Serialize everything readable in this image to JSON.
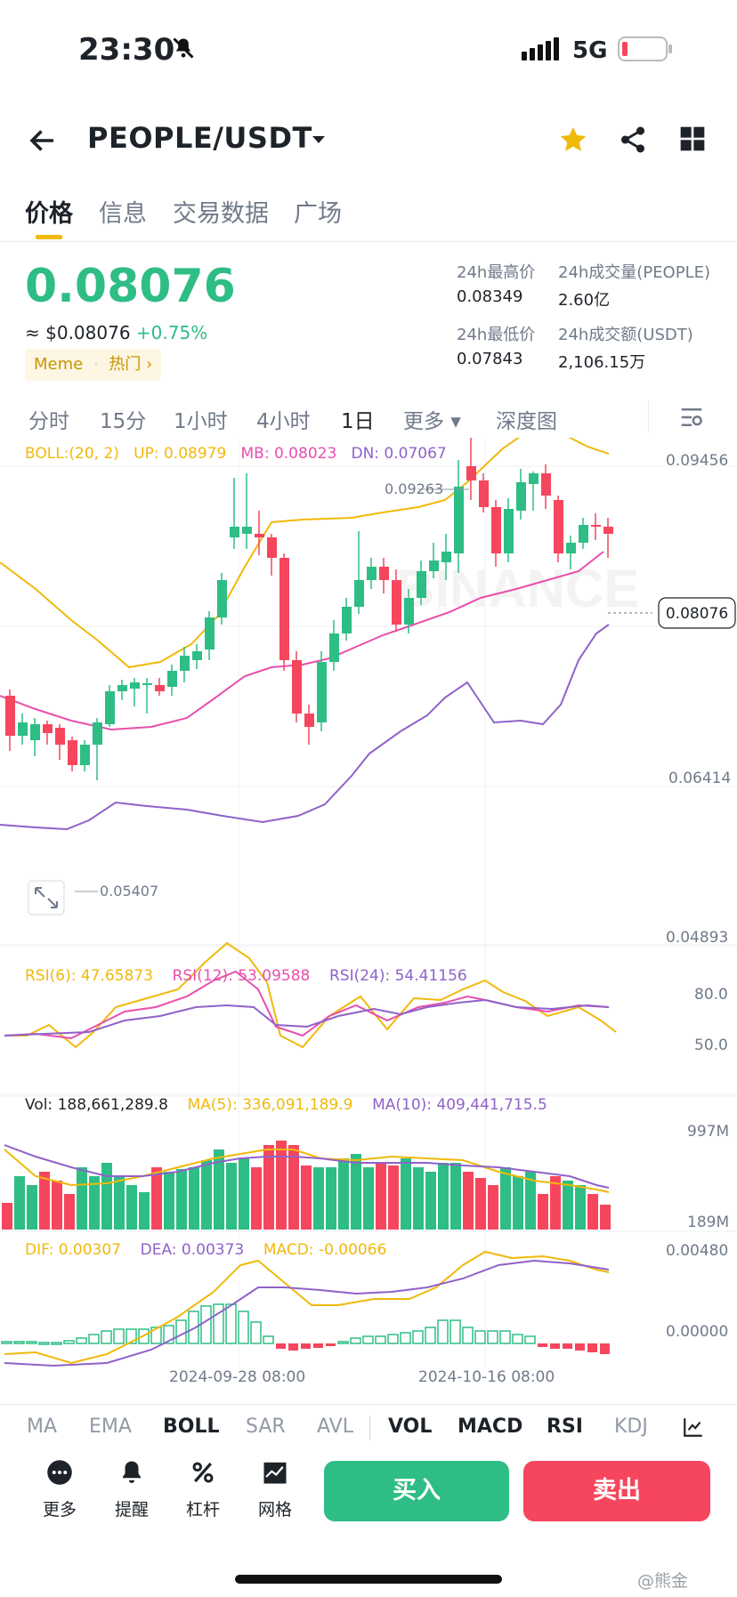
{
  "status_bar": {
    "time": "23:30",
    "network": "5G"
  },
  "header": {
    "pair": "PEOPLE/USDT"
  },
  "tabs": [
    {
      "label": "价格",
      "active": true
    },
    {
      "label": "信息",
      "active": false
    },
    {
      "label": "交易数据",
      "active": false
    },
    {
      "label": "广场",
      "active": false
    }
  ],
  "ticker": {
    "price": "0.08076",
    "usd_price": "≈ $0.08076",
    "change": "+0.75%",
    "tag_meme": "Meme",
    "tag_hot": "热门 ›",
    "high_label": "24h最高价",
    "high_value": "0.08349",
    "vol_label": "24h成交量(PEOPLE)",
    "vol_value": "2.60亿",
    "low_label": "24h最低价",
    "low_value": "0.07843",
    "amount_label": "24h成交额(USDT)",
    "amount_value": "2,106.15万"
  },
  "intervals": [
    {
      "label": "分时",
      "active": false
    },
    {
      "label": "15分",
      "active": false
    },
    {
      "label": "1小时",
      "active": false
    },
    {
      "label": "4小时",
      "active": false
    },
    {
      "label": "1日",
      "active": true
    },
    {
      "label": "更多 ▾",
      "active": false
    },
    {
      "label": "深度图",
      "active": false
    }
  ],
  "chart": {
    "boll_label": "BOLL:(20, 2)",
    "up_label": "UP: 0.08979",
    "mb_label": "MB: 0.08023",
    "dn_label": "DN: 0.07067",
    "axis_top": "0.09456",
    "axis_mid": "0.06414",
    "axis_low": "0.04893",
    "high_marker": "0.09263",
    "low_marker": "0.05407",
    "current_price": "0.08076",
    "rsi6_label": "RSI(6): 47.65873",
    "rsi12_label": "RSI(12): 53.09588",
    "rsi24_label": "RSI(24): 54.41156",
    "rsi_axis_hi": "80.0",
    "rsi_axis_mid": "50.0",
    "vol_label": "Vol: 188,661,289.8",
    "ma5_label": "MA(5): 336,091,189.9",
    "ma10_label": "MA(10): 409,441,715.5",
    "vol_axis_hi": "997M",
    "vol_axis_lo": "189M",
    "dif_label": "DIF: 0.00307",
    "dea_label": "DEA: 0.00373",
    "macd_label": "MACD: -0.00066",
    "macd_axis_hi": "0.00480",
    "macd_axis_zero": "0.00000",
    "date_1": "2024-09-28 08:00",
    "date_2": "2024-10-16 08:00",
    "colors": {
      "up": "#2ebd85",
      "down": "#f6465d",
      "boll_up": "#f0b90b",
      "boll_mb": "#e84fad",
      "boll_dn": "#8f62c9"
    }
  },
  "bottom_tabs": [
    {
      "label": "MA",
      "active": false
    },
    {
      "label": "EMA",
      "active": false
    },
    {
      "label": "BOLL",
      "active": true
    },
    {
      "label": "SAR",
      "active": false
    },
    {
      "label": "AVL",
      "active": false
    },
    {
      "label": "VOL",
      "active": true
    },
    {
      "label": "MACD",
      "active": true
    },
    {
      "label": "RSI",
      "active": true
    },
    {
      "label": "KDJ",
      "active": false
    }
  ],
  "actions": [
    {
      "label": "更多",
      "icon": "more-icon"
    },
    {
      "label": "提醒",
      "icon": "bell-icon"
    },
    {
      "label": "杠杆",
      "icon": "leverage-icon"
    },
    {
      "label": "网格",
      "icon": "grid-bot-icon"
    }
  ],
  "buy_label": "买入",
  "sell_label": "卖出",
  "watermark": "@熊金"
}
